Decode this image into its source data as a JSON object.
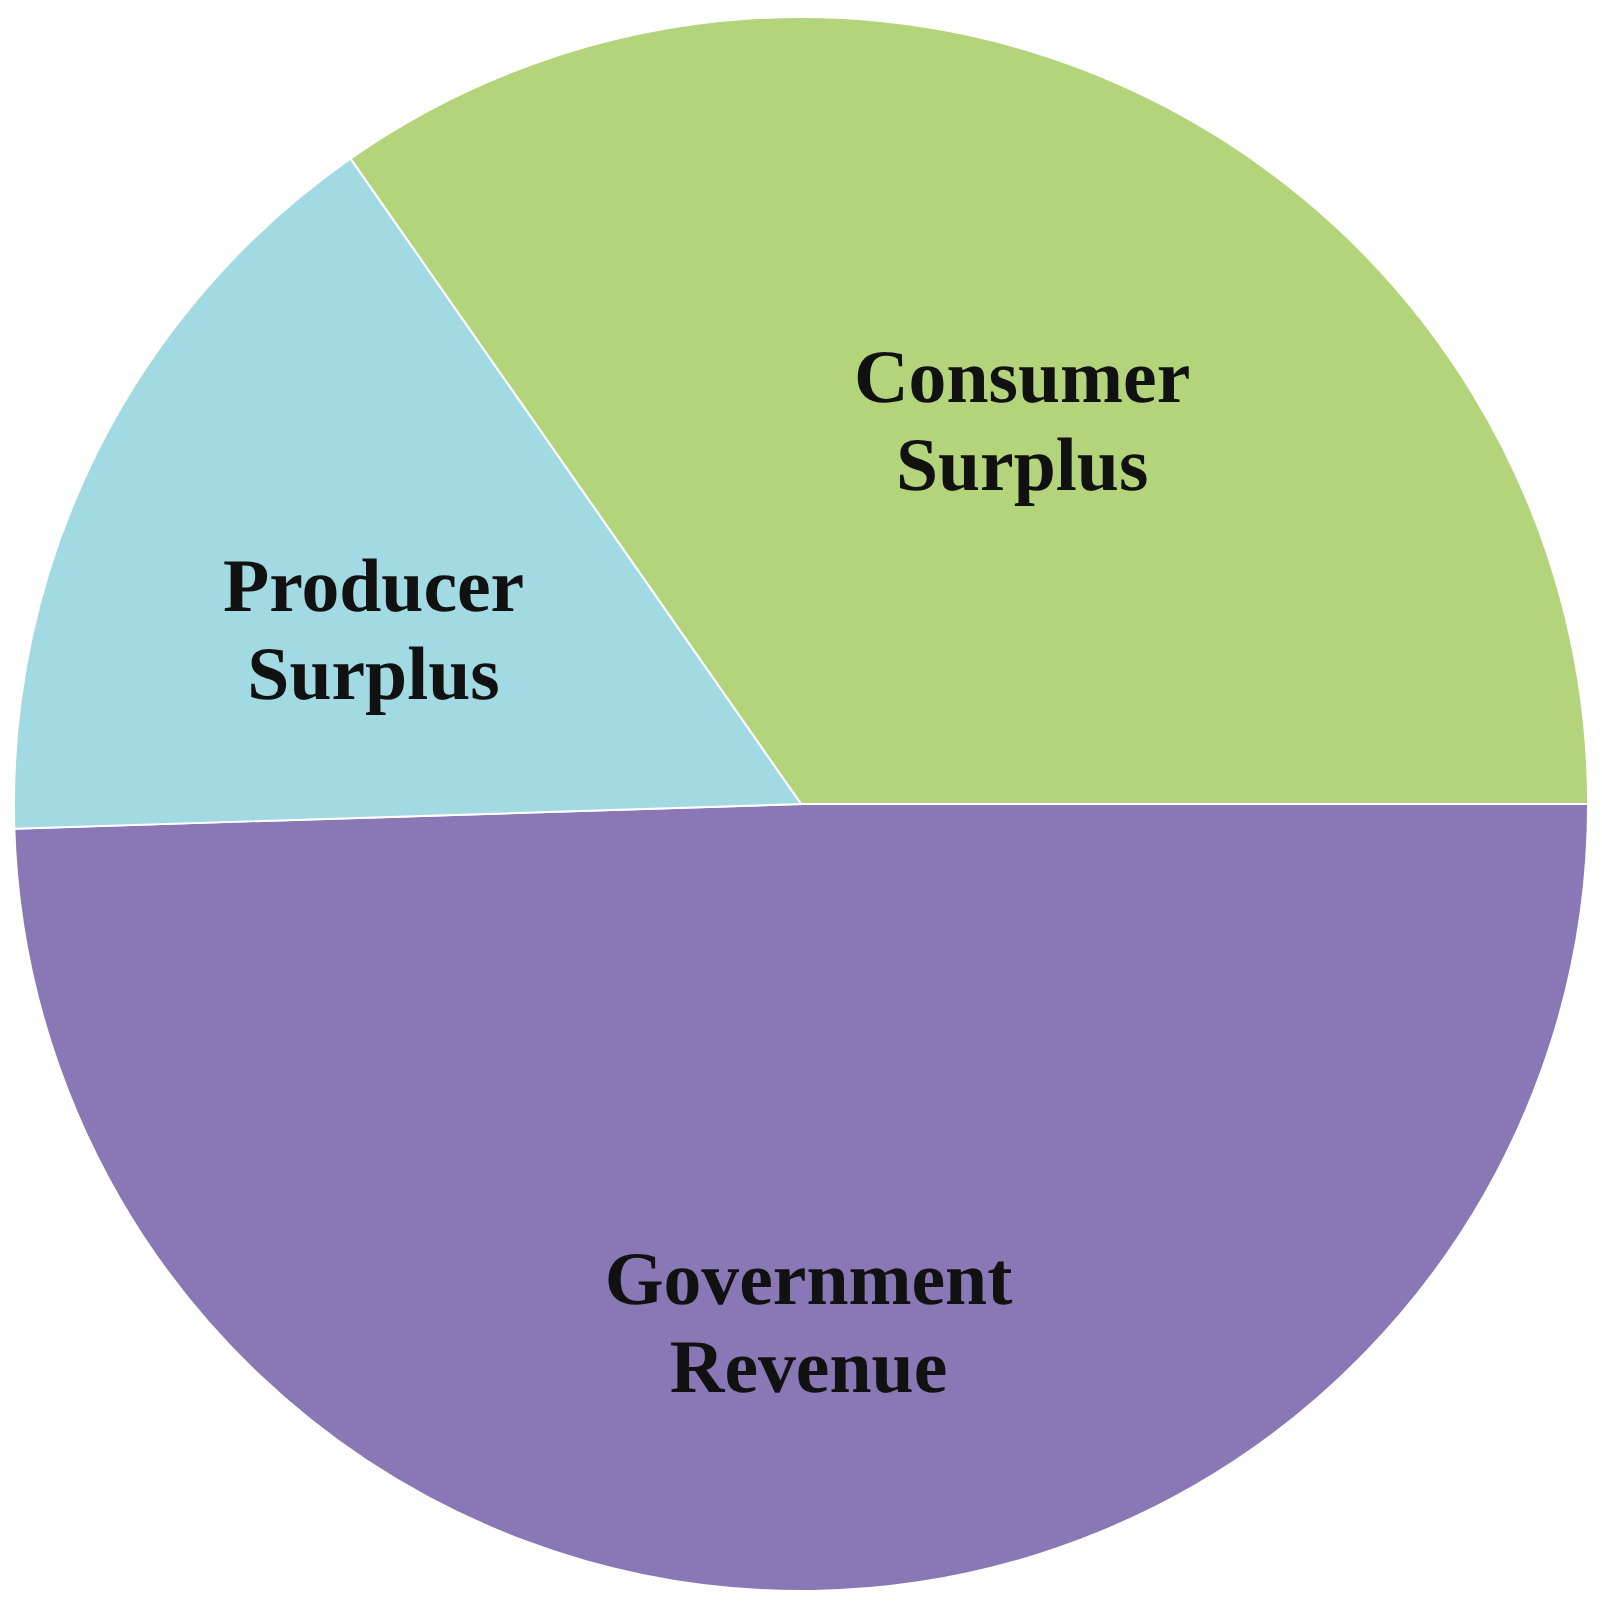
{
  "chart_data": {
    "type": "pie",
    "categories": [
      "Consumer Surplus",
      "Government Revenue",
      "Producer Surplus"
    ],
    "values": [
      34.7,
      49.5,
      15.8
    ],
    "colors": [
      "#b3d47a",
      "#8a77b5",
      "#a2dae3"
    ],
    "legend": false
  }
}
